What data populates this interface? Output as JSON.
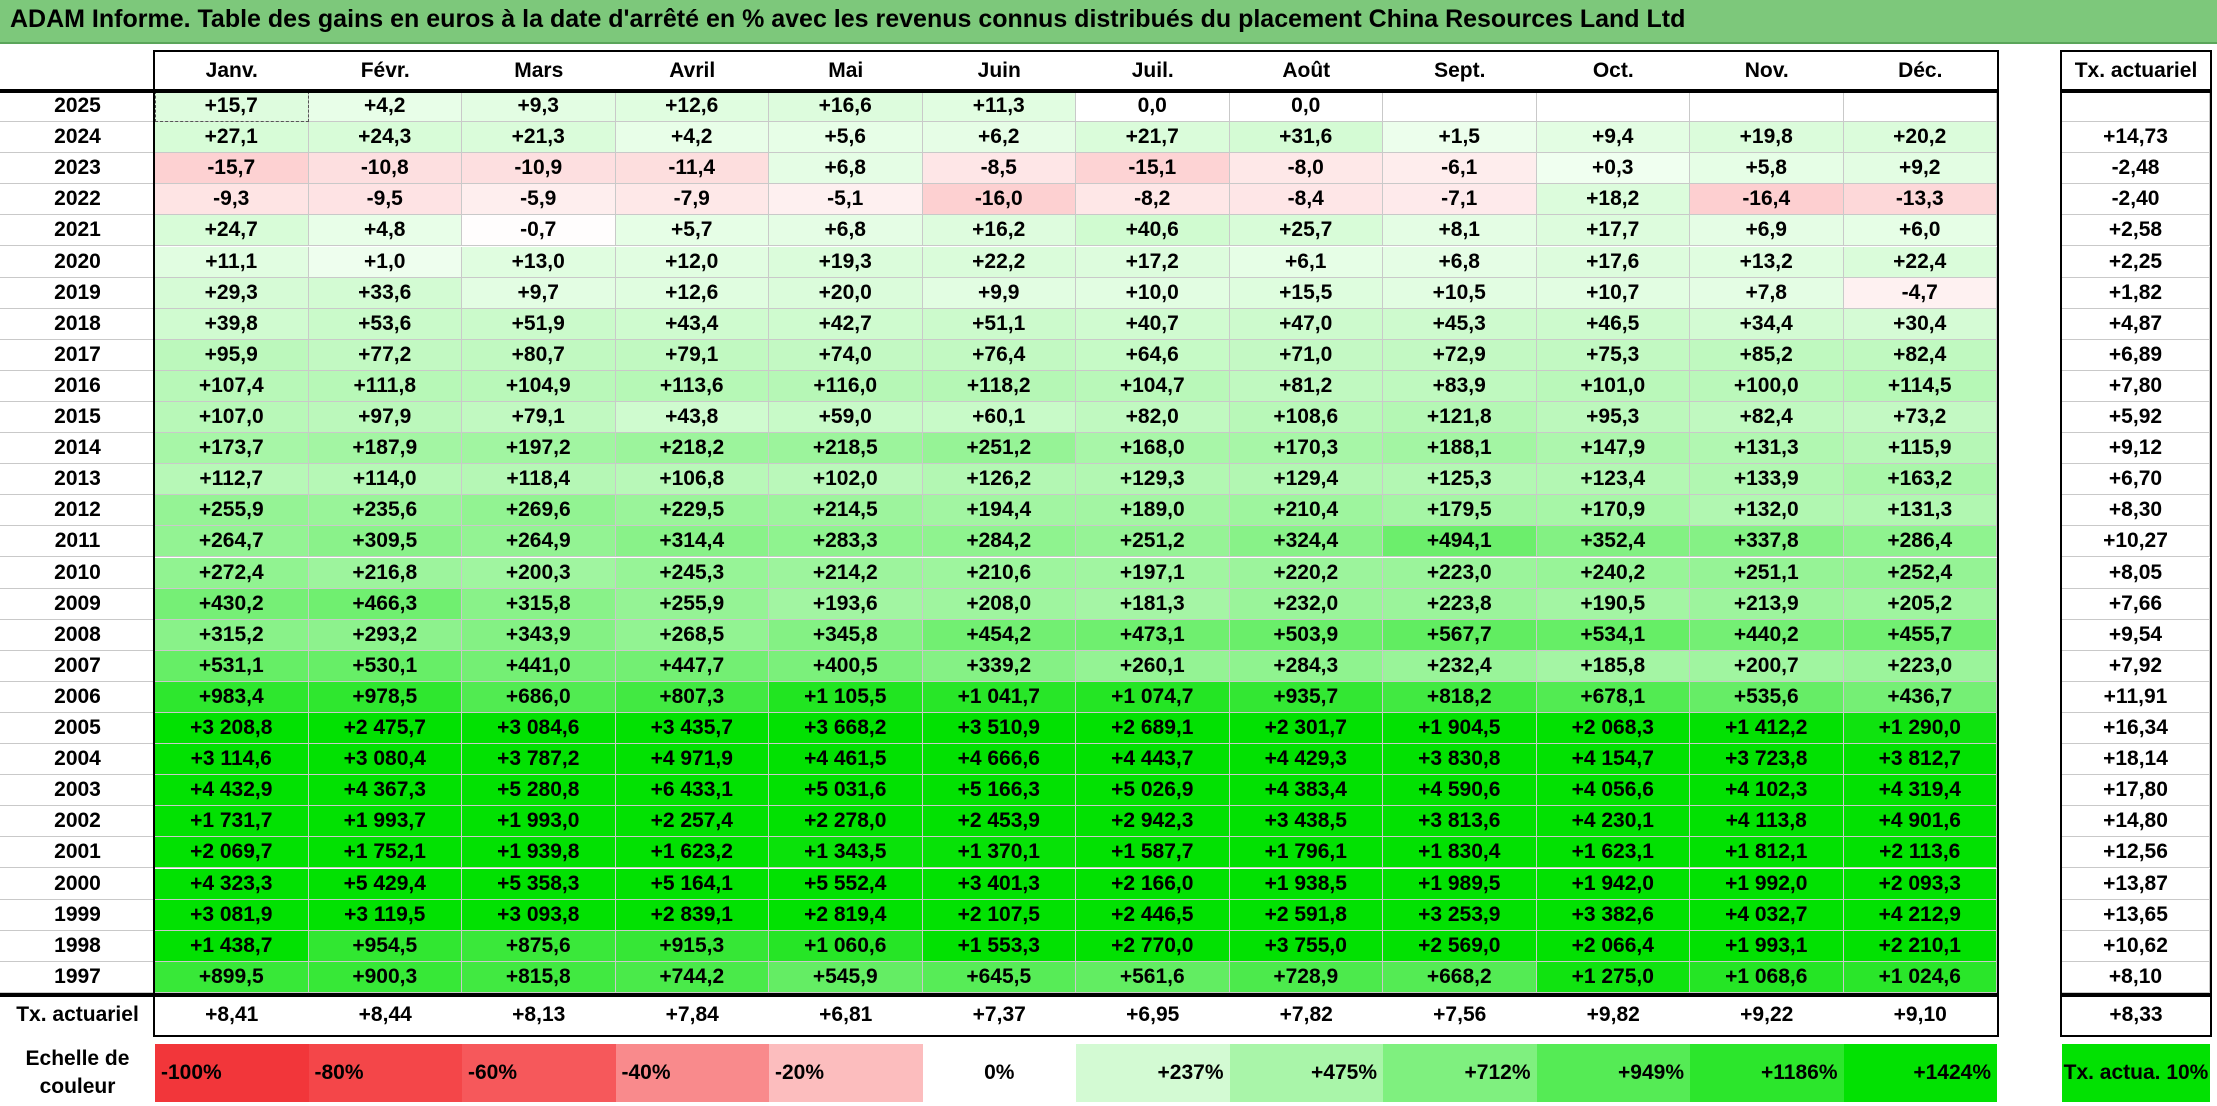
{
  "title": "ADAM Informe. Table des gains en euros à la date d'arrêté en % avec les revenus connus distribués du placement China Resources Land Ltd",
  "chart_data": {
    "type": "table",
    "columns": [
      "Janv.",
      "Févr.",
      "Mars",
      "Avril",
      "Mai",
      "Juin",
      "Juil.",
      "Août",
      "Sept.",
      "Oct.",
      "Nov.",
      "Déc."
    ],
    "actuarial_header": "Tx. actuariel",
    "rows": [
      {
        "year": "2025",
        "values": [
          "+15,7",
          "+4,2",
          "+9,3",
          "+12,6",
          "+16,6",
          "+11,3",
          "0,0",
          "0,0",
          "",
          "",
          "",
          ""
        ],
        "rate": ""
      },
      {
        "year": "2024",
        "values": [
          "+27,1",
          "+24,3",
          "+21,3",
          "+4,2",
          "+5,6",
          "+6,2",
          "+21,7",
          "+31,6",
          "+1,5",
          "+9,4",
          "+19,8",
          "+20,2"
        ],
        "rate": "+14,73"
      },
      {
        "year": "2023",
        "values": [
          "-15,7",
          "-10,8",
          "-10,9",
          "-11,4",
          "+6,8",
          "-8,5",
          "-15,1",
          "-8,0",
          "-6,1",
          "+0,3",
          "+5,8",
          "+9,2"
        ],
        "rate": "-2,48"
      },
      {
        "year": "2022",
        "values": [
          "-9,3",
          "-9,5",
          "-5,9",
          "-7,9",
          "-5,1",
          "-16,0",
          "-8,2",
          "-8,4",
          "-7,1",
          "+18,2",
          "-16,4",
          "-13,3"
        ],
        "rate": "-2,40"
      },
      {
        "year": "2021",
        "values": [
          "+24,7",
          "+4,8",
          "-0,7",
          "+5,7",
          "+6,8",
          "+16,2",
          "+40,6",
          "+25,7",
          "+8,1",
          "+17,7",
          "+6,9",
          "+6,0"
        ],
        "rate": "+2,58"
      },
      {
        "year": "2020",
        "values": [
          "+11,1",
          "+1,0",
          "+13,0",
          "+12,0",
          "+19,3",
          "+22,2",
          "+17,2",
          "+6,1",
          "+6,8",
          "+17,6",
          "+13,2",
          "+22,4"
        ],
        "rate": "+2,25"
      },
      {
        "year": "2019",
        "values": [
          "+29,3",
          "+33,6",
          "+9,7",
          "+12,6",
          "+20,0",
          "+9,9",
          "+10,0",
          "+15,5",
          "+10,5",
          "+10,7",
          "+7,8",
          "-4,7"
        ],
        "rate": "+1,82"
      },
      {
        "year": "2018",
        "values": [
          "+39,8",
          "+53,6",
          "+51,9",
          "+43,4",
          "+42,7",
          "+51,1",
          "+40,7",
          "+47,0",
          "+45,3",
          "+46,5",
          "+34,4",
          "+30,4"
        ],
        "rate": "+4,87"
      },
      {
        "year": "2017",
        "values": [
          "+95,9",
          "+77,2",
          "+80,7",
          "+79,1",
          "+74,0",
          "+76,4",
          "+64,6",
          "+71,0",
          "+72,9",
          "+75,3",
          "+85,2",
          "+82,4"
        ],
        "rate": "+6,89"
      },
      {
        "year": "2016",
        "values": [
          "+107,4",
          "+111,8",
          "+104,9",
          "+113,6",
          "+116,0",
          "+118,2",
          "+104,7",
          "+81,2",
          "+83,9",
          "+101,0",
          "+100,0",
          "+114,5"
        ],
        "rate": "+7,80"
      },
      {
        "year": "2015",
        "values": [
          "+107,0",
          "+97,9",
          "+79,1",
          "+43,8",
          "+59,0",
          "+60,1",
          "+82,0",
          "+108,6",
          "+121,8",
          "+95,3",
          "+82,4",
          "+73,2"
        ],
        "rate": "+5,92"
      },
      {
        "year": "2014",
        "values": [
          "+173,7",
          "+187,9",
          "+197,2",
          "+218,2",
          "+218,5",
          "+251,2",
          "+168,0",
          "+170,3",
          "+188,1",
          "+147,9",
          "+131,3",
          "+115,9"
        ],
        "rate": "+9,12"
      },
      {
        "year": "2013",
        "values": [
          "+112,7",
          "+114,0",
          "+118,4",
          "+106,8",
          "+102,0",
          "+126,2",
          "+129,3",
          "+129,4",
          "+125,3",
          "+123,4",
          "+133,9",
          "+163,2"
        ],
        "rate": "+6,70"
      },
      {
        "year": "2012",
        "values": [
          "+255,9",
          "+235,6",
          "+269,6",
          "+229,5",
          "+214,5",
          "+194,4",
          "+189,0",
          "+210,4",
          "+179,5",
          "+170,9",
          "+132,0",
          "+131,3"
        ],
        "rate": "+8,30"
      },
      {
        "year": "2011",
        "values": [
          "+264,7",
          "+309,5",
          "+264,9",
          "+314,4",
          "+283,3",
          "+284,2",
          "+251,2",
          "+324,4",
          "+494,1",
          "+352,4",
          "+337,8",
          "+286,4"
        ],
        "rate": "+10,27"
      },
      {
        "year": "2010",
        "values": [
          "+272,4",
          "+216,8",
          "+200,3",
          "+245,3",
          "+214,2",
          "+210,6",
          "+197,1",
          "+220,2",
          "+223,0",
          "+240,2",
          "+251,1",
          "+252,4"
        ],
        "rate": "+8,05"
      },
      {
        "year": "2009",
        "values": [
          "+430,2",
          "+466,3",
          "+315,8",
          "+255,9",
          "+193,6",
          "+208,0",
          "+181,3",
          "+232,0",
          "+223,8",
          "+190,5",
          "+213,9",
          "+205,2"
        ],
        "rate": "+7,66"
      },
      {
        "year": "2008",
        "values": [
          "+315,2",
          "+293,2",
          "+343,9",
          "+268,5",
          "+345,8",
          "+454,2",
          "+473,1",
          "+503,9",
          "+567,7",
          "+534,1",
          "+440,2",
          "+455,7"
        ],
        "rate": "+9,54"
      },
      {
        "year": "2007",
        "values": [
          "+531,1",
          "+530,1",
          "+441,0",
          "+447,7",
          "+400,5",
          "+339,2",
          "+260,1",
          "+284,3",
          "+232,4",
          "+185,8",
          "+200,7",
          "+223,0"
        ],
        "rate": "+7,92"
      },
      {
        "year": "2006",
        "values": [
          "+983,4",
          "+978,5",
          "+686,0",
          "+807,3",
          "+1 105,5",
          "+1 041,7",
          "+1 074,7",
          "+935,7",
          "+818,2",
          "+678,1",
          "+535,6",
          "+436,7"
        ],
        "rate": "+11,91"
      },
      {
        "year": "2005",
        "values": [
          "+3 208,8",
          "+2 475,7",
          "+3 084,6",
          "+3 435,7",
          "+3 668,2",
          "+3 510,9",
          "+2 689,1",
          "+2 301,7",
          "+1 904,5",
          "+2 068,3",
          "+1 412,2",
          "+1 290,0"
        ],
        "rate": "+16,34"
      },
      {
        "year": "2004",
        "values": [
          "+3 114,6",
          "+3 080,4",
          "+3 787,2",
          "+4 971,9",
          "+4 461,5",
          "+4 666,6",
          "+4 443,7",
          "+4 429,3",
          "+3 830,8",
          "+4 154,7",
          "+3 723,8",
          "+3 812,7"
        ],
        "rate": "+18,14"
      },
      {
        "year": "2003",
        "values": [
          "+4 432,9",
          "+4 367,3",
          "+5 280,8",
          "+6 433,1",
          "+5 031,6",
          "+5 166,3",
          "+5 026,9",
          "+4 383,4",
          "+4 590,6",
          "+4 056,6",
          "+4 102,3",
          "+4 319,4"
        ],
        "rate": "+17,80"
      },
      {
        "year": "2002",
        "values": [
          "+1 731,7",
          "+1 993,7",
          "+1 993,0",
          "+2 257,4",
          "+2 278,0",
          "+2 453,9",
          "+2 942,3",
          "+3 438,5",
          "+3 813,6",
          "+4 230,1",
          "+4 113,8",
          "+4 901,6"
        ],
        "rate": "+14,80"
      },
      {
        "year": "2001",
        "values": [
          "+2 069,7",
          "+1 752,1",
          "+1 939,8",
          "+1 623,2",
          "+1 343,5",
          "+1 370,1",
          "+1 587,7",
          "+1 796,1",
          "+1 830,4",
          "+1 623,1",
          "+1 812,1",
          "+2 113,6"
        ],
        "rate": "+12,56"
      },
      {
        "year": "2000",
        "values": [
          "+4 323,3",
          "+5 429,4",
          "+5 358,3",
          "+5 164,1",
          "+5 552,4",
          "+3 401,3",
          "+2 166,0",
          "+1 938,5",
          "+1 989,5",
          "+1 942,0",
          "+1 992,0",
          "+2 093,3"
        ],
        "rate": "+13,87"
      },
      {
        "year": "1999",
        "values": [
          "+3 081,9",
          "+3 119,5",
          "+3 093,8",
          "+2 839,1",
          "+2 819,4",
          "+2 107,5",
          "+2 446,5",
          "+2 591,8",
          "+3 253,9",
          "+3 382,6",
          "+4 032,7",
          "+4 212,9"
        ],
        "rate": "+13,65"
      },
      {
        "year": "1998",
        "values": [
          "+1 438,7",
          "+954,5",
          "+875,6",
          "+915,3",
          "+1 060,6",
          "+1 553,3",
          "+2 770,0",
          "+3 755,0",
          "+2 569,0",
          "+2 066,4",
          "+1 993,1",
          "+2 210,1"
        ],
        "rate": "+10,62"
      },
      {
        "year": "1997",
        "values": [
          "+899,5",
          "+900,3",
          "+815,8",
          "+744,2",
          "+545,9",
          "+645,5",
          "+561,6",
          "+728,9",
          "+668,2",
          "+1 275,0",
          "+1 068,6",
          "+1 024,6"
        ],
        "rate": "+8,10"
      }
    ],
    "footer": {
      "label": "Tx. actuariel",
      "values": [
        "+8,41",
        "+8,44",
        "+8,13",
        "+7,84",
        "+6,81",
        "+7,37",
        "+6,95",
        "+7,82",
        "+7,56",
        "+9,82",
        "+9,22",
        "+9,10"
      ],
      "rate": "+8,33"
    },
    "scale": {
      "label": "Echelle de couleur",
      "entries": [
        {
          "label": "-100%",
          "color": "#f2363a",
          "align": "left"
        },
        {
          "label": "-80%",
          "color": "#f44649",
          "align": "left"
        },
        {
          "label": "-60%",
          "color": "#f6585b",
          "align": "left"
        },
        {
          "label": "-40%",
          "color": "#f98a8c",
          "align": "left"
        },
        {
          "label": "-20%",
          "color": "#fcbdbe",
          "align": "left"
        },
        {
          "label": "0%",
          "color": "#ffffff",
          "align": "center"
        },
        {
          "label": "+237%",
          "color": "#d3fad3",
          "align": "right"
        },
        {
          "label": "+475%",
          "color": "#a9f5a9",
          "align": "right"
        },
        {
          "label": "+712%",
          "color": "#7ff07f",
          "align": "right"
        },
        {
          "label": "+949%",
          "color": "#55eb55",
          "align": "right"
        },
        {
          "label": "+1186%",
          "color": "#2ce62c",
          "align": "right"
        },
        {
          "label": "+1424%",
          "color": "#02e102",
          "align": "right"
        }
      ],
      "rate_label": "Tx. actua. 10%",
      "rate_color": "#02e102"
    }
  }
}
